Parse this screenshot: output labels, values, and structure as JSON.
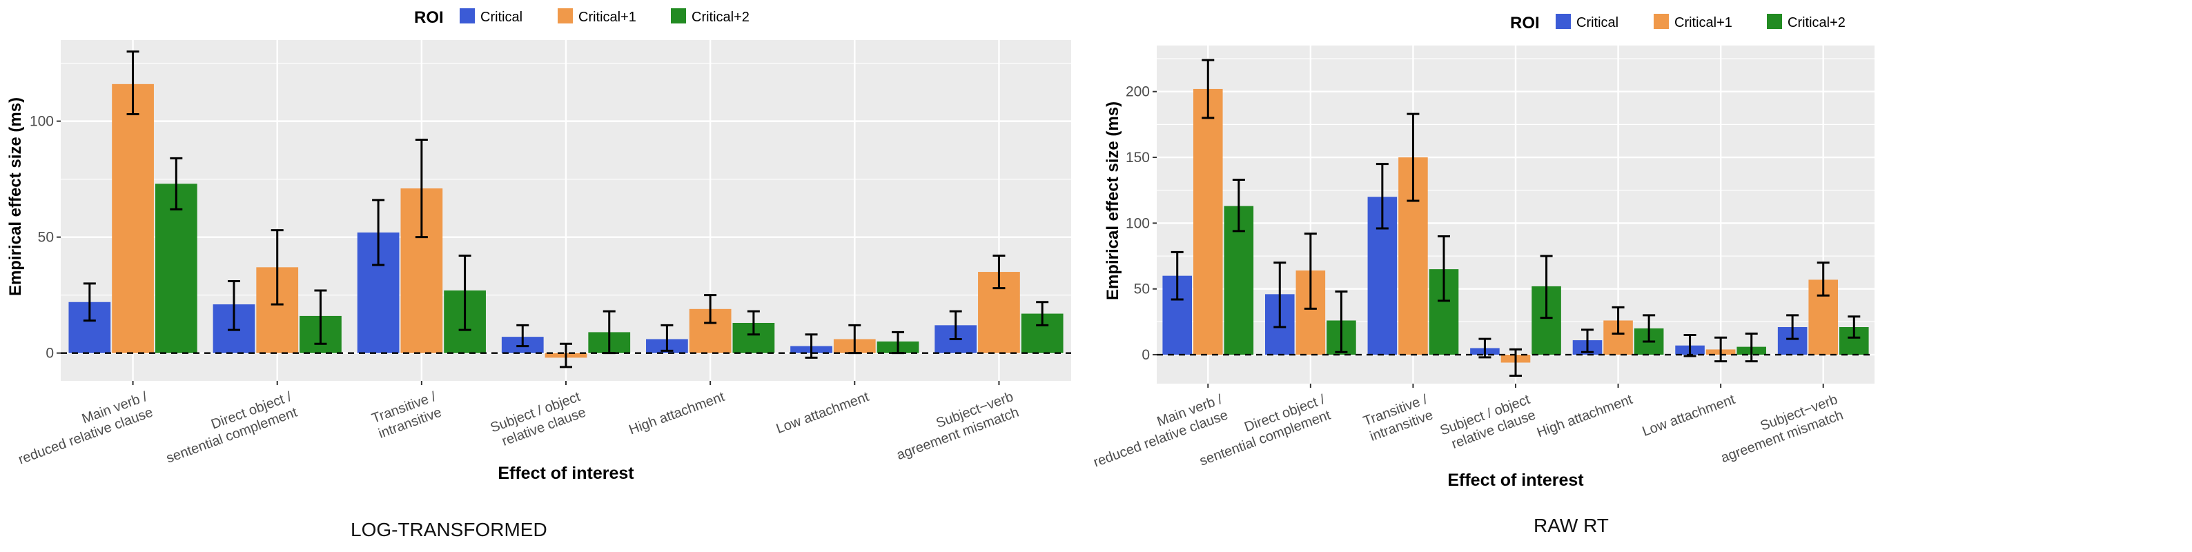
{
  "colors": {
    "critical": "#3b5bd6",
    "critical_plus1": "#f0994a",
    "critical_plus2": "#228b22",
    "panel": "#ebebeb",
    "grid": "#ffffff"
  },
  "captions": [
    "LOG-TRANSFORMED",
    "RAW RT"
  ],
  "chart_data": [
    {
      "type": "bar",
      "title": "",
      "xlabel": "Effect of interest",
      "ylabel": "Empirical effect size (ms)",
      "ylim": [
        -12,
        135
      ],
      "yticks": [
        0,
        50,
        100
      ],
      "grid": true,
      "legend": {
        "title": "ROI",
        "placement": "top"
      },
      "categories": [
        [
          "Main verb /",
          "reduced relative clause"
        ],
        [
          "Direct object /",
          "sentential complement"
        ],
        [
          "Transitive /",
          "intransitive"
        ],
        [
          "Subject / object",
          "relative clause"
        ],
        [
          "High attachment"
        ],
        [
          "Low attachment"
        ],
        [
          "Subject−verb",
          "agreement mismatch"
        ]
      ],
      "series": [
        {
          "name": "Critical",
          "values": [
            22,
            21,
            52,
            7,
            6,
            3,
            12
          ],
          "err_low": [
            14,
            10,
            38,
            3,
            1,
            -2,
            6
          ],
          "err_high": [
            30,
            31,
            66,
            12,
            12,
            8,
            18
          ]
        },
        {
          "name": "Critical+1",
          "values": [
            116,
            37,
            71,
            -2,
            19,
            6,
            35
          ],
          "err_low": [
            103,
            21,
            50,
            -6,
            13,
            0,
            28
          ],
          "err_high": [
            130,
            53,
            92,
            4,
            25,
            12,
            42
          ]
        },
        {
          "name": "Critical+2",
          "values": [
            73,
            16,
            27,
            9,
            13,
            5,
            17
          ],
          "err_low": [
            62,
            4,
            10,
            0,
            8,
            0,
            12
          ],
          "err_high": [
            84,
            27,
            42,
            18,
            18,
            9,
            22
          ]
        }
      ]
    },
    {
      "type": "bar",
      "title": "",
      "xlabel": "Effect of interest",
      "ylabel": "Empirical effect size (ms)",
      "ylim": [
        -22,
        235
      ],
      "yticks": [
        0,
        50,
        100,
        150,
        200
      ],
      "grid": true,
      "legend": {
        "title": "ROI",
        "placement": "top"
      },
      "categories": [
        [
          "Main verb /",
          "reduced relative clause"
        ],
        [
          "Direct object /",
          "sentential complement"
        ],
        [
          "Transitive /",
          "intransitive"
        ],
        [
          "Subject / object",
          "relative clause"
        ],
        [
          "High attachment"
        ],
        [
          "Low attachment"
        ],
        [
          "Subject−verb",
          "agreement mismatch"
        ]
      ],
      "series": [
        {
          "name": "Critical",
          "values": [
            60,
            46,
            120,
            5,
            11,
            7,
            21
          ],
          "err_low": [
            42,
            21,
            96,
            -2,
            2,
            -1,
            12
          ],
          "err_high": [
            78,
            70,
            145,
            12,
            19,
            15,
            30
          ]
        },
        {
          "name": "Critical+1",
          "values": [
            202,
            64,
            150,
            -6,
            26,
            4,
            57
          ],
          "err_low": [
            180,
            35,
            117,
            -16,
            16,
            -5,
            45
          ],
          "err_high": [
            224,
            92,
            183,
            4,
            36,
            13,
            70
          ]
        },
        {
          "name": "Critical+2",
          "values": [
            113,
            26,
            65,
            52,
            20,
            6,
            21
          ],
          "err_low": [
            94,
            2,
            41,
            28,
            10,
            -5,
            13
          ],
          "err_high": [
            133,
            48,
            90,
            75,
            30,
            16,
            29
          ]
        }
      ]
    }
  ]
}
